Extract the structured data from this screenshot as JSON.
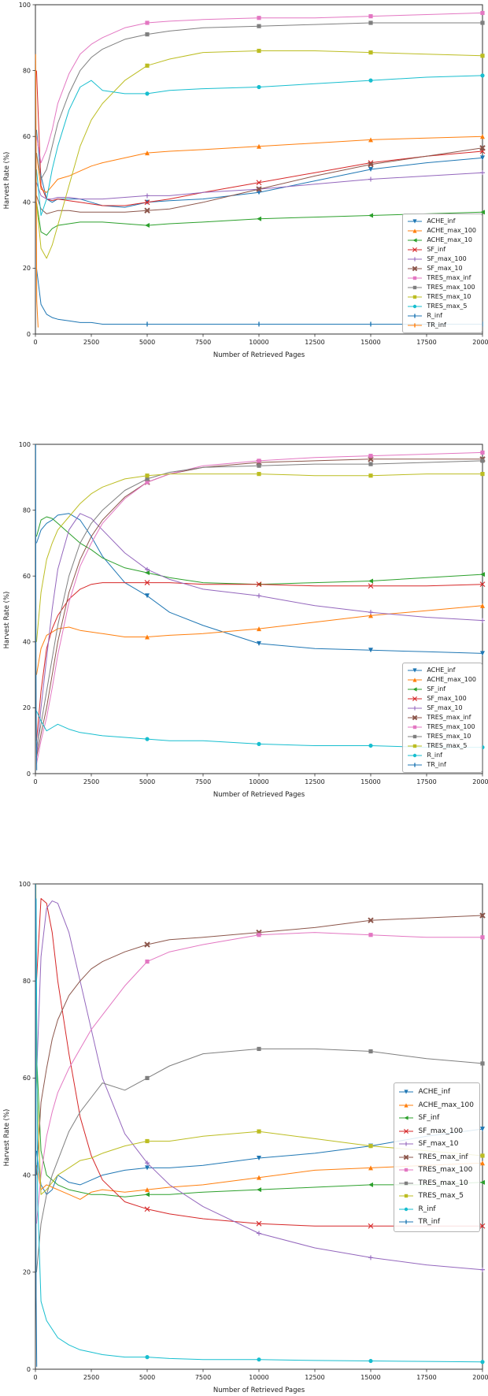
{
  "figure": {
    "background": "#ffffff"
  },
  "chart_data": [
    {
      "type": "line",
      "title": "",
      "xlabel": "Number of Retrieved Pages",
      "ylabel": "Harvest Rate (%)",
      "xlim": [
        0,
        20000
      ],
      "ylim": [
        0,
        100
      ],
      "xticks": [
        0,
        2500,
        5000,
        7500,
        10000,
        12500,
        15000,
        17500,
        20000
      ],
      "yticks": [
        0,
        20,
        40,
        60,
        80,
        100
      ],
      "grid": false,
      "legend_position": "lower right",
      "marker_xs": [
        5000,
        10000,
        15000,
        20000
      ],
      "x_default": [
        50,
        250,
        500,
        750,
        1000,
        1500,
        2000,
        2500,
        3000,
        4000,
        5000,
        6000,
        7500,
        10000,
        12500,
        15000,
        17500,
        20000
      ],
      "series": [
        {
          "name": "ACHE_inf",
          "color": "#1f77b4",
          "marker": "v",
          "y": [
            62,
            48,
            41,
            40,
            41,
            41,
            41,
            40,
            39,
            38.5,
            40,
            40.5,
            41,
            43,
            46.5,
            50,
            52,
            53.5
          ]
        },
        {
          "name": "ACHE_max_100",
          "color": "#ff7f0e",
          "marker": "^",
          "y": [
            55,
            44,
            43,
            45,
            47,
            48,
            49.5,
            51,
            52,
            53.5,
            55,
            55.5,
            56,
            57,
            58,
            59,
            59.5,
            60
          ]
        },
        {
          "name": "ACHE_max_10",
          "color": "#2ca02c",
          "marker": "<",
          "y": [
            40,
            31,
            30,
            32,
            33,
            33.5,
            34,
            34,
            34,
            33.5,
            33,
            33.5,
            34,
            35,
            35.5,
            36,
            36.5,
            37
          ]
        },
        {
          "name": "SF_inf",
          "color": "#d62728",
          "marker": "x",
          "y": [
            80,
            45,
            41,
            40.5,
            41,
            40.5,
            40,
            39.5,
            39,
            39,
            40,
            41,
            43,
            46,
            49,
            52,
            54,
            55.5
          ]
        },
        {
          "name": "SF_max_100",
          "color": "#9467bd",
          "marker": "+",
          "y": [
            46,
            42,
            41,
            41,
            41.5,
            41.5,
            41,
            41,
            41,
            41.5,
            42,
            42,
            43,
            44,
            45.5,
            47,
            48,
            49
          ]
        },
        {
          "name": "SF_max_10",
          "color": "#8c564b",
          "marker": "X",
          "y": [
            42,
            38,
            36.5,
            37,
            37.5,
            37.5,
            37,
            37,
            37,
            37,
            37.5,
            38,
            40,
            44,
            48,
            51.5,
            54,
            56.5
          ]
        },
        {
          "name": "TRES_max_inf",
          "color": "#e377c2",
          "marker": "s",
          "y": [
            60,
            52,
            56,
            62,
            70,
            79,
            85,
            88,
            90,
            93,
            94.5,
            95,
            95.5,
            96,
            96,
            96.5,
            97,
            97.5
          ]
        },
        {
          "name": "TRES_max_100",
          "color": "#7f7f7f",
          "marker": "s",
          "y": [
            55,
            47,
            50,
            57,
            64,
            73,
            80,
            84,
            86.5,
            89.5,
            91,
            92,
            93,
            93.5,
            94,
            94.5,
            94.5,
            94.5
          ]
        },
        {
          "name": "TRES_max_10",
          "color": "#bcbd22",
          "marker": "s",
          "y": [
            40,
            26,
            23,
            27,
            33,
            45,
            57,
            65,
            70,
            77,
            81.5,
            83.5,
            85.5,
            86,
            86,
            85.5,
            85,
            84.5
          ]
        },
        {
          "name": "TRES_max_5",
          "color": "#17becf",
          "marker": "o",
          "y": [
            50,
            36,
            41,
            50,
            57,
            68,
            75,
            77,
            74,
            73,
            73,
            74,
            74.5,
            75,
            76,
            77,
            78,
            78.5
          ]
        },
        {
          "name": "R_inf",
          "color": "#1f77b4",
          "marker": "|",
          "y": [
            20,
            9,
            6,
            5,
            4.5,
            4,
            3.5,
            3.5,
            3,
            3,
            3,
            3,
            3,
            3,
            3,
            3,
            3,
            3
          ]
        },
        {
          "name": "TR_inf",
          "color": "#ff7f0e",
          "marker": "|",
          "x": [
            10,
            30,
            60,
            120
          ],
          "y": [
            85,
            55,
            10,
            2
          ]
        }
      ]
    },
    {
      "type": "line",
      "title": "",
      "xlabel": "Number of Retrieved Pages",
      "ylabel": "Harvest Rate (%)",
      "xlim": [
        0,
        20000
      ],
      "ylim": [
        0,
        100
      ],
      "xticks": [
        0,
        2500,
        5000,
        7500,
        10000,
        12500,
        15000,
        17500,
        20000
      ],
      "yticks": [
        0,
        20,
        40,
        60,
        80,
        100
      ],
      "grid": false,
      "legend_position": "lower right",
      "marker_xs": [
        5000,
        10000,
        15000,
        20000
      ],
      "x_default": [
        50,
        250,
        500,
        750,
        1000,
        1500,
        2000,
        2500,
        3000,
        4000,
        5000,
        6000,
        7500,
        10000,
        12500,
        15000,
        17500,
        20000
      ],
      "series": [
        {
          "name": "ACHE_inf",
          "color": "#1f77b4",
          "marker": "v",
          "y": [
            70,
            74,
            76,
            77,
            78.5,
            79,
            77,
            72,
            66,
            58,
            54,
            49,
            45,
            39.5,
            38,
            37.5,
            37,
            36.5
          ]
        },
        {
          "name": "ACHE_max_100",
          "color": "#ff7f0e",
          "marker": "^",
          "y": [
            30,
            38,
            42,
            43,
            44,
            44.5,
            43.5,
            43,
            42.5,
            41.5,
            41.5,
            42,
            42.5,
            44,
            46,
            48,
            49.5,
            51
          ]
        },
        {
          "name": "SF_inf",
          "color": "#2ca02c",
          "marker": "<",
          "y": [
            72,
            77,
            78,
            77.5,
            76,
            73,
            70,
            68,
            65.5,
            62.5,
            61,
            59.5,
            58,
            57.5,
            58,
            58.5,
            59.5,
            60.5
          ]
        },
        {
          "name": "SF_max_100",
          "color": "#d62728",
          "marker": "x",
          "y": [
            10,
            25,
            38,
            44,
            48,
            53,
            56,
            57.5,
            58,
            58,
            58,
            58,
            57.5,
            57.5,
            57,
            57,
            57,
            57.5
          ]
        },
        {
          "name": "SF_max_10",
          "color": "#9467bd",
          "marker": "+",
          "y": [
            5,
            20,
            35,
            50,
            62,
            74,
            79,
            77.5,
            74,
            67,
            62,
            59,
            56,
            54,
            51,
            49,
            47.5,
            46.5
          ]
        },
        {
          "name": "TRES_max_inf",
          "color": "#8c564b",
          "marker": "X",
          "y": [
            5,
            12,
            20,
            30,
            40,
            55,
            65,
            72,
            77,
            84,
            88.5,
            91,
            93,
            94.5,
            95,
            95.5,
            95.5,
            95.5
          ]
        },
        {
          "name": "TRES_max_100",
          "color": "#e377c2",
          "marker": "s",
          "y": [
            3,
            10,
            17,
            26,
            36,
            52,
            63,
            70,
            76,
            83.5,
            88.5,
            91,
            93.5,
            95,
            96,
            96.5,
            97,
            97.5
          ]
        },
        {
          "name": "TRES_max_10",
          "color": "#7f7f7f",
          "marker": "s",
          "y": [
            8,
            15,
            25,
            35,
            45,
            60,
            70,
            76,
            80,
            86,
            89.5,
            91.5,
            93,
            93.5,
            94,
            94,
            94.5,
            95
          ]
        },
        {
          "name": "TRES_max_5",
          "color": "#bcbd22",
          "marker": "s",
          "y": [
            40,
            55,
            65,
            70,
            74,
            78,
            82,
            85,
            87,
            89.5,
            90.5,
            91,
            91,
            91,
            90.5,
            90.5,
            91,
            91
          ]
        },
        {
          "name": "R_inf",
          "color": "#17becf",
          "marker": "o",
          "y": [
            19,
            16,
            13,
            14,
            15,
            13.5,
            12.5,
            12,
            11.5,
            11,
            10.5,
            10,
            10,
            9,
            8.5,
            8.5,
            8,
            8
          ]
        },
        {
          "name": "TR_inf",
          "color": "#1f77b4",
          "marker": "|",
          "x": [
            12,
            18,
            30,
            60
          ],
          "y": [
            100,
            60,
            20,
            1
          ]
        }
      ]
    },
    {
      "type": "line",
      "title": "",
      "xlabel": "Number of Retrieved Pages",
      "ylabel": "Harvest Rate (%)",
      "xlim": [
        0,
        20000
      ],
      "ylim": [
        0,
        100
      ],
      "xticks": [
        0,
        2500,
        5000,
        7500,
        10000,
        12500,
        15000,
        17500,
        20000
      ],
      "yticks": [
        0,
        20,
        40,
        60,
        80,
        100
      ],
      "grid": false,
      "legend_position": "right",
      "marker_xs": [
        5000,
        10000,
        15000,
        20000
      ],
      "x_default": [
        50,
        250,
        500,
        750,
        1000,
        1500,
        2000,
        2500,
        3000,
        4000,
        5000,
        6000,
        7500,
        10000,
        12500,
        15000,
        17500,
        20000
      ],
      "series": [
        {
          "name": "ACHE_inf",
          "color": "#1f77b4",
          "marker": "v",
          "y": [
            45,
            38,
            36,
            37,
            40,
            38.5,
            38,
            39,
            40,
            41,
            41.5,
            41.5,
            42,
            43.5,
            44.5,
            46,
            48,
            49.5
          ]
        },
        {
          "name": "ACHE_max_100",
          "color": "#ff7f0e",
          "marker": "^",
          "y": [
            42,
            37,
            38,
            37.5,
            37,
            36,
            35,
            36.5,
            37,
            36.5,
            37,
            37.5,
            38,
            39.5,
            41,
            41.5,
            42,
            42.5
          ]
        },
        {
          "name": "SF_inf",
          "color": "#2ca02c",
          "marker": "<",
          "y": [
            65,
            45,
            40,
            39,
            38,
            37,
            36.5,
            36,
            36,
            35.5,
            36,
            36,
            36.5,
            37,
            37.5,
            38,
            38,
            38.5
          ]
        },
        {
          "name": "SF_max_100",
          "color": "#d62728",
          "marker": "x",
          "y": [
            80,
            97,
            96,
            90,
            80,
            65,
            52,
            44,
            39,
            34.5,
            33,
            32,
            31,
            30,
            29.5,
            29.5,
            29.5,
            29.5
          ]
        },
        {
          "name": "SF_max_10",
          "color": "#9467bd",
          "marker": "+",
          "y": [
            60,
            85,
            95,
            96.5,
            96,
            90,
            80,
            70,
            60,
            48.5,
            42.5,
            38,
            33.5,
            28,
            25,
            23,
            21.5,
            20.5
          ]
        },
        {
          "name": "TRES_max_inf",
          "color": "#8c564b",
          "marker": "X",
          "y": [
            40,
            55,
            62,
            68,
            72,
            77,
            80,
            82.5,
            84,
            86,
            87.5,
            88.5,
            89,
            90,
            91,
            92.5,
            93,
            93.5
          ]
        },
        {
          "name": "TRES_max_100",
          "color": "#e377c2",
          "marker": "s",
          "y": [
            30,
            40,
            48,
            53,
            57,
            62,
            66,
            70,
            73,
            79,
            84,
            86,
            87.5,
            89.5,
            90,
            89.5,
            89,
            89
          ]
        },
        {
          "name": "TRES_max_10",
          "color": "#7f7f7f",
          "marker": "s",
          "y": [
            20,
            30,
            36,
            40,
            43,
            49,
            53,
            56,
            59,
            57.5,
            60,
            62.5,
            65,
            66,
            66,
            65.5,
            64,
            63
          ]
        },
        {
          "name": "TRES_max_5",
          "color": "#bcbd22",
          "marker": "s",
          "x": [
            20,
            50,
            250,
            500,
            750,
            1000,
            1500,
            2000,
            2500,
            3000,
            4000,
            5000,
            6000,
            7500,
            10000,
            12500,
            15000,
            17500,
            20000
          ],
          "y": [
            100,
            60,
            36,
            37,
            38.5,
            40,
            41.5,
            43,
            43.5,
            44.5,
            46,
            47,
            47,
            48,
            49,
            47.5,
            46,
            45,
            44
          ]
        },
        {
          "name": "R_inf",
          "color": "#17becf",
          "marker": "o",
          "x": [
            30,
            100,
            250,
            500,
            1000,
            1500,
            2000,
            2500,
            3000,
            4000,
            5000,
            6000,
            7500,
            10000,
            12500,
            15000,
            17500,
            20000
          ],
          "y": [
            97,
            35,
            14,
            10,
            6.5,
            5,
            4,
            3.5,
            3,
            2.5,
            2.5,
            2.2,
            2,
            2,
            1.8,
            1.7,
            1.6,
            1.5
          ]
        },
        {
          "name": "TR_inf",
          "color": "#1f77b4",
          "marker": "|",
          "x": [
            12,
            18,
            30,
            60
          ],
          "y": [
            100,
            55,
            15,
            0.5
          ]
        }
      ]
    }
  ]
}
